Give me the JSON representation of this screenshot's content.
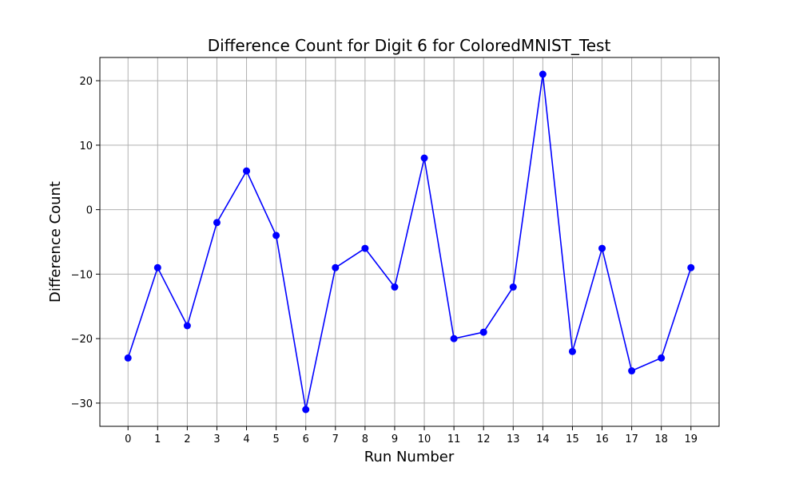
{
  "chart_data": {
    "type": "line",
    "title": "Difference Count for Digit 6 for ColoredMNIST_Test",
    "xlabel": "Run Number",
    "ylabel": "Difference Count",
    "x": [
      0,
      1,
      2,
      3,
      4,
      5,
      6,
      7,
      8,
      9,
      10,
      11,
      12,
      13,
      14,
      15,
      16,
      17,
      18,
      19
    ],
    "y": [
      -23,
      -9,
      -18,
      -2,
      6,
      -4,
      -31,
      -9,
      -6,
      -12,
      8,
      -20,
      -19,
      -12,
      21,
      -22,
      -6,
      -25,
      -23,
      -9
    ],
    "xticks": [
      0,
      1,
      2,
      3,
      4,
      5,
      6,
      7,
      8,
      9,
      10,
      11,
      12,
      13,
      14,
      15,
      16,
      17,
      18,
      19
    ],
    "yticks": [
      -30,
      -20,
      -10,
      0,
      10,
      20
    ],
    "ytick_labels": [
      "−30",
      "−20",
      "−10",
      "0",
      "10",
      "20"
    ],
    "xlim": [
      -0.95,
      19.95
    ],
    "ylim": [
      -33.6,
      23.6
    ],
    "grid": true,
    "line_color": "#0000ff",
    "marker": "circle"
  }
}
